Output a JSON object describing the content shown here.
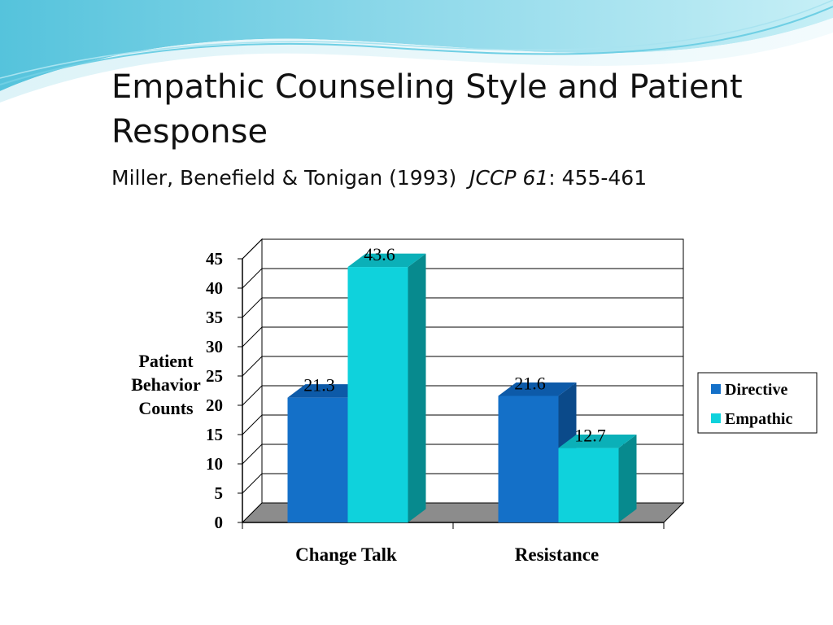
{
  "slide": {
    "title": "Empathic Counseling Style and Patient Response",
    "subtitle_pre": "Miller, Benefield & Tonigan (1993)  ",
    "subtitle_journal": "JCCP 61",
    "subtitle_post": ": 455-461"
  },
  "colors": {
    "directive": "#1470C8",
    "directive_side": "#0B4A8A",
    "directive_top": "#0D5AA8",
    "empathic": "#0FD2DC",
    "empathic_side": "#078A8E",
    "empathic_top": "#0BB0B8",
    "floor": "#8C8C8C"
  },
  "chart_data": {
    "type": "bar",
    "categories": [
      "Change Talk",
      "Resistance"
    ],
    "series": [
      {
        "name": "Directive",
        "values": [
          21.3,
          21.6
        ]
      },
      {
        "name": "Empathic",
        "values": [
          43.6,
          12.7
        ]
      }
    ],
    "value_labels": [
      [
        "21.3",
        "21.6"
      ],
      [
        "43.6",
        "12.7"
      ]
    ],
    "ylabel_lines": [
      "Patient",
      "Behavior",
      "Counts"
    ],
    "ylim": [
      0,
      45
    ],
    "yticks": [
      0,
      5,
      10,
      15,
      20,
      25,
      30,
      35,
      40,
      45
    ],
    "grid": true,
    "legend_position": "right",
    "style": "3d-clustered-column"
  }
}
